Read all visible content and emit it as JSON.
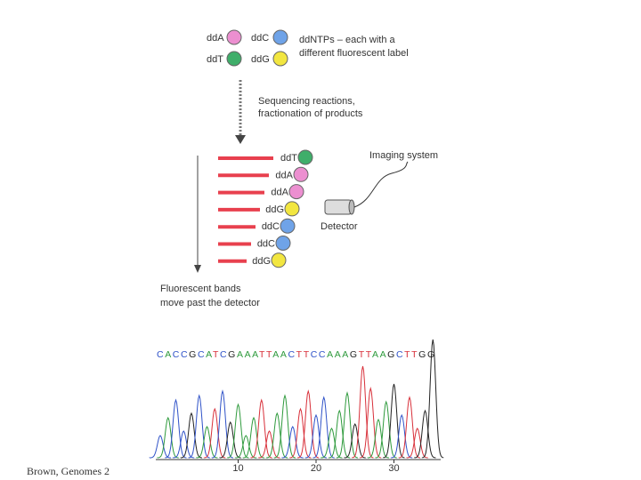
{
  "legend": {
    "items": [
      {
        "label": "ddA",
        "color": "#ec8fd0"
      },
      {
        "label": "ddC",
        "color": "#6fa3e8"
      },
      {
        "label": "ddT",
        "color": "#3fae6a"
      },
      {
        "label": "ddG",
        "color": "#f2e640"
      }
    ],
    "note": [
      "ddNTPs – each with a",
      "different fluorescent label"
    ]
  },
  "step": [
    "Sequencing reactions,",
    "fractionation of products"
  ],
  "bands": [
    {
      "label": "ddT",
      "color": "#3fae6a"
    },
    {
      "label": "ddA",
      "color": "#ec8fd0"
    },
    {
      "label": "ddA",
      "color": "#ec8fd0"
    },
    {
      "label": "ddG",
      "color": "#f2e640"
    },
    {
      "label": "ddC",
      "color": "#6fa3e8"
    },
    {
      "label": "ddC",
      "color": "#6fa3e8"
    },
    {
      "label": "ddG",
      "color": "#f2e640"
    }
  ],
  "imaging_label": "Imaging system",
  "detector_label": "Detector",
  "caption": [
    "Fluorescent bands",
    "move past the detector"
  ],
  "trace": {
    "sequence": "CACCGCATCGAAATTAACTTCCAAAGTTAAGCTTGG",
    "base_colors": {
      "A": "#2e9a3c",
      "C": "#2f52c8",
      "G": "#222222",
      "T": "#d8303a"
    },
    "xticks": [
      10,
      20,
      30
    ]
  },
  "footer": "Brown, Genomes 2"
}
